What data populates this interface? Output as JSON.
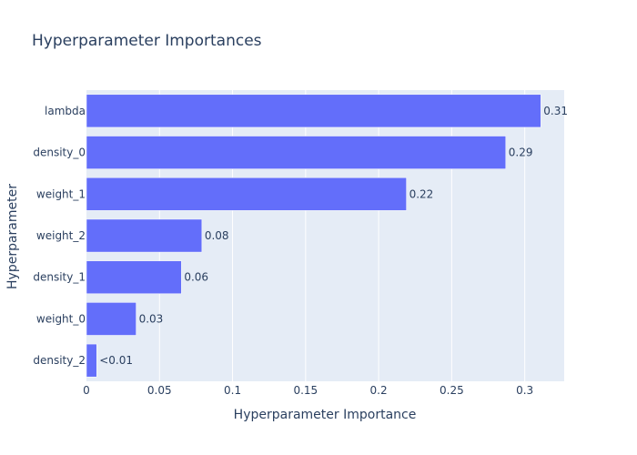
{
  "chart_data": {
    "type": "bar",
    "orientation": "horizontal",
    "title": "Hyperparameter Importances",
    "xlabel": "Hyperparameter Importance",
    "ylabel": "Hyperparameter",
    "categories": [
      "lambda",
      "density_0",
      "weight_1",
      "weight_2",
      "density_1",
      "weight_0",
      "density_2"
    ],
    "values": [
      0.311,
      0.287,
      0.219,
      0.079,
      0.065,
      0.034,
      0.007
    ],
    "data_labels": [
      "0.31",
      "0.29",
      "0.22",
      "0.08",
      "0.06",
      "0.03",
      "<0.01"
    ],
    "xlim": [
      0,
      0.327
    ],
    "xticks": [
      0,
      0.05,
      0.1,
      0.15,
      0.2,
      0.25,
      0.3
    ],
    "xtick_labels": [
      "0",
      "0.05",
      "0.1",
      "0.15",
      "0.2",
      "0.25",
      "0.3"
    ],
    "grid": true,
    "colors": {
      "bar": "#636efa",
      "plot_bg": "#e5ecf6",
      "grid": "#ffffff",
      "text": "#2a3f5f"
    }
  }
}
